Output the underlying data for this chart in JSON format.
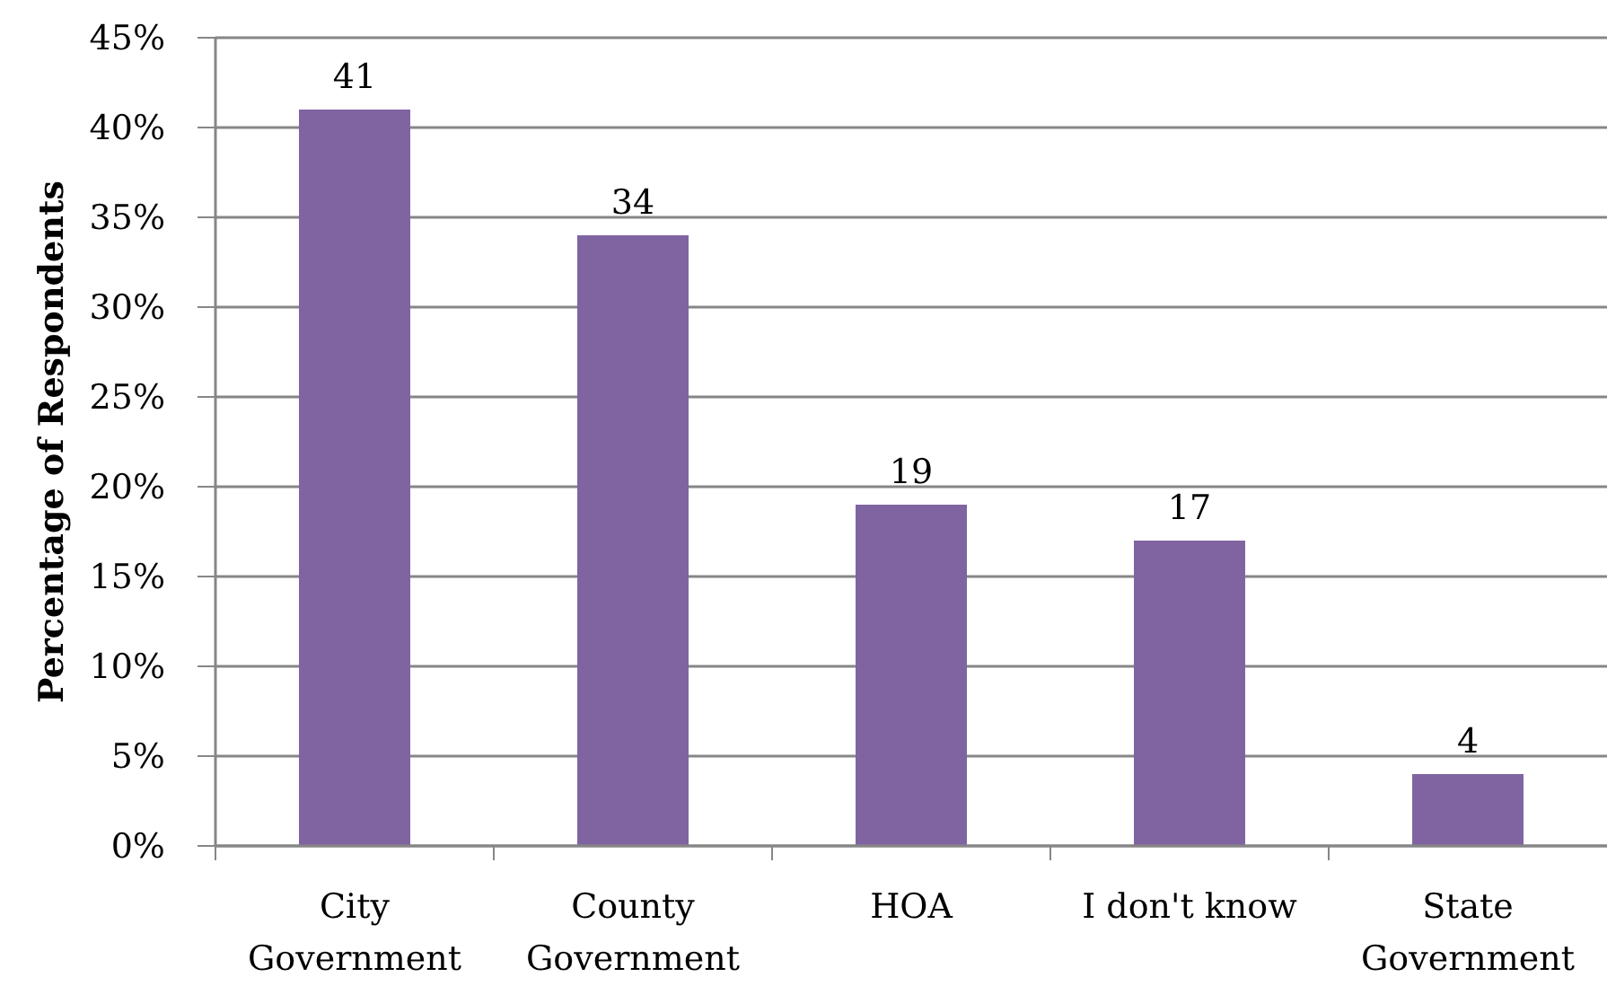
{
  "chart_data": {
    "type": "bar",
    "ylabel": "Percentage of Respondents",
    "categories": [
      "City Government",
      "County Government",
      "HOA",
      "I don't know",
      "State Government"
    ],
    "values": [
      41,
      34,
      19,
      17,
      4
    ],
    "color": "#8064a2",
    "ylim": [
      0,
      45
    ],
    "yticks": [
      {
        "value": 0,
        "label": "0%"
      },
      {
        "value": 5,
        "label": "5%"
      },
      {
        "value": 10,
        "label": "10%"
      },
      {
        "value": 15,
        "label": "15%"
      },
      {
        "value": 20,
        "label": "20%"
      },
      {
        "value": 25,
        "label": "25%"
      },
      {
        "value": 30,
        "label": "30%"
      },
      {
        "value": 35,
        "label": "35%"
      },
      {
        "value": 40,
        "label": "40%"
      },
      {
        "value": 45,
        "label": "45%"
      }
    ],
    "grid": "y",
    "data_labels": true
  }
}
